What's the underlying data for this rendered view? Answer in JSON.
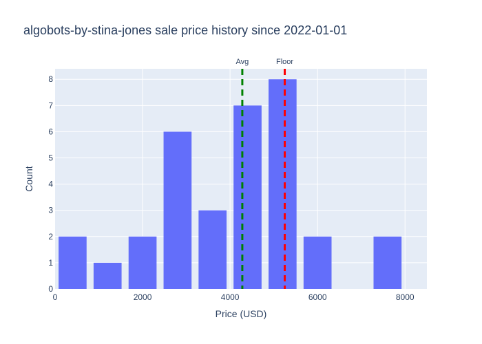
{
  "chart_data": {
    "type": "bar",
    "title": "algobots-by-stina-jones sale price history since 2022-01-01",
    "xlabel": "Price (USD)",
    "ylabel": "Count",
    "bins": [
      {
        "start": 0,
        "end": 800,
        "count": 2
      },
      {
        "start": 800,
        "end": 1600,
        "count": 1
      },
      {
        "start": 1600,
        "end": 2400,
        "count": 2
      },
      {
        "start": 2400,
        "end": 3200,
        "count": 6
      },
      {
        "start": 3200,
        "end": 4000,
        "count": 3
      },
      {
        "start": 4000,
        "end": 4800,
        "count": 7
      },
      {
        "start": 4800,
        "end": 5600,
        "count": 8
      },
      {
        "start": 5600,
        "end": 6400,
        "count": 2
      },
      {
        "start": 6400,
        "end": 7200,
        "count": 0
      },
      {
        "start": 7200,
        "end": 8000,
        "count": 2
      }
    ],
    "xlim": [
      0,
      8500
    ],
    "ylim": [
      0,
      8.4
    ],
    "x_ticks": [
      0,
      2000,
      4000,
      6000,
      8000
    ],
    "x_tick_labels": [
      "0",
      "2000",
      "4000",
      "6000",
      "8000"
    ],
    "y_ticks": [
      0,
      1,
      2,
      3,
      4,
      5,
      6,
      7,
      8
    ],
    "grid": true,
    "bar_color": "#636efa",
    "plot_bg": "#e5ecf6",
    "reference_lines": [
      {
        "label": "Avg",
        "x": 4280,
        "color": "#008000",
        "style": "dashed"
      },
      {
        "label": "Floor",
        "x": 5250,
        "color": "#ff0000",
        "style": "dashed"
      }
    ]
  }
}
